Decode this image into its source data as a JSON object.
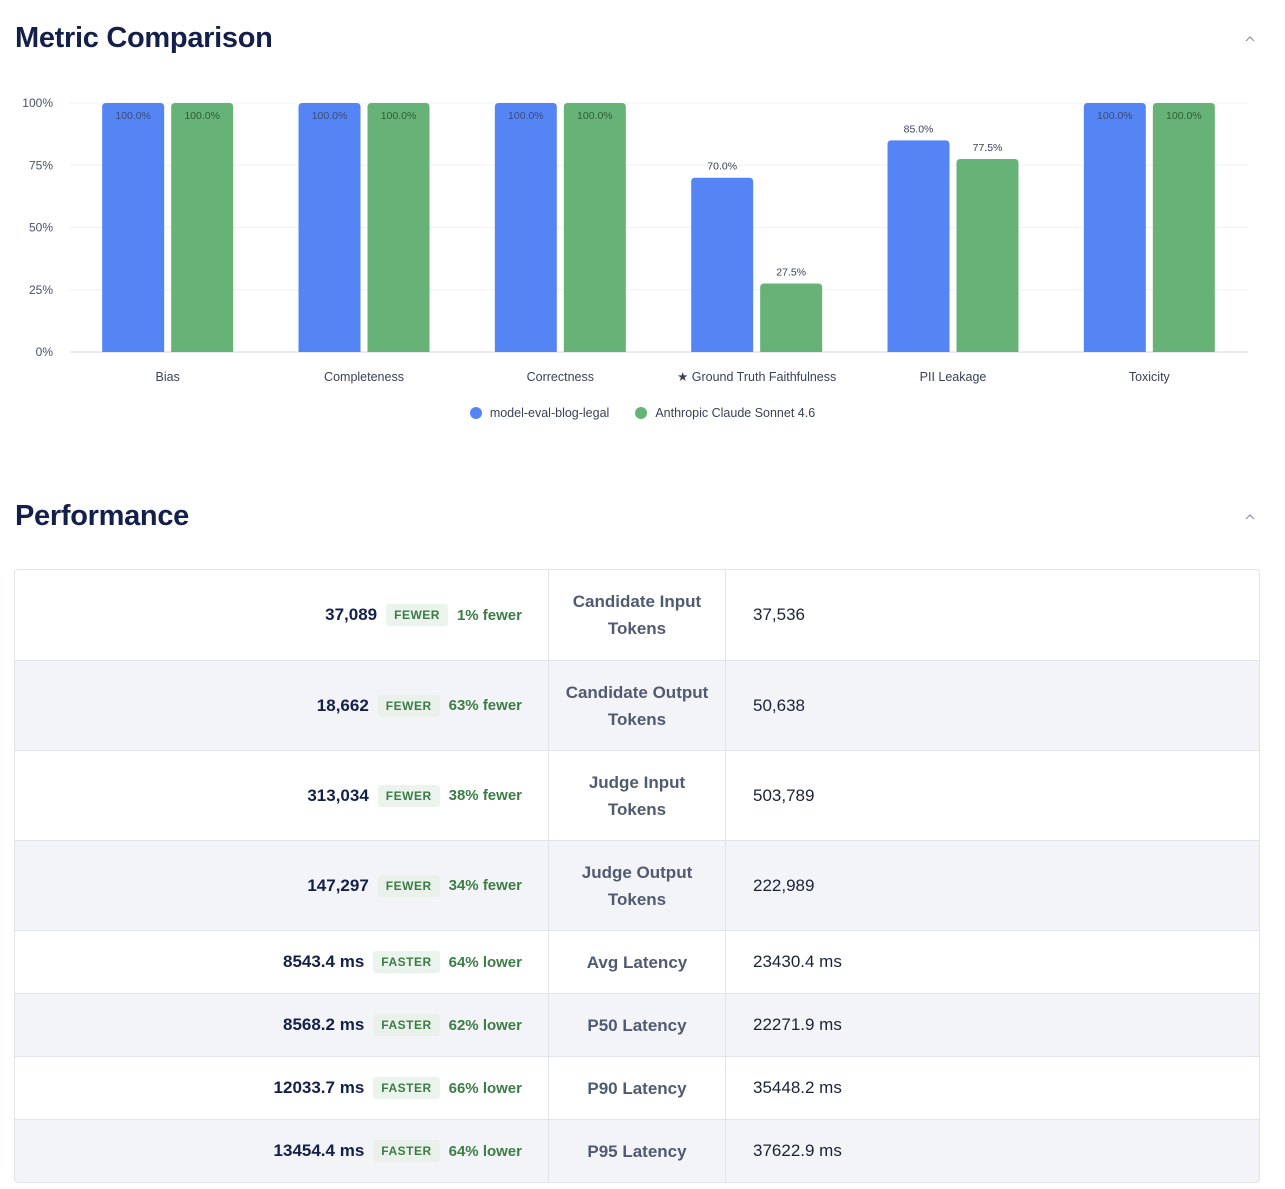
{
  "metric_section": {
    "title": "Metric Comparison"
  },
  "chart_data": {
    "type": "bar",
    "categories": [
      "Bias",
      "Completeness",
      "Correctness",
      "★ Ground Truth Faithfulness",
      "PII Leakage",
      "Toxicity"
    ],
    "series": [
      {
        "name": "model-eval-blog-legal",
        "color": "#5585f5",
        "values": [
          100.0,
          100.0,
          100.0,
          70.0,
          85.0,
          100.0
        ]
      },
      {
        "name": "Anthropic Claude Sonnet 4.6",
        "color": "#67b377",
        "values": [
          100.0,
          100.0,
          100.0,
          27.5,
          77.5,
          100.0
        ]
      }
    ],
    "ylim": [
      0,
      100
    ],
    "yticks": [
      "0%",
      "25%",
      "50%",
      "75%",
      "100%"
    ],
    "legend_position": "bottom-center",
    "grid": true
  },
  "performance_section": {
    "title": "Performance",
    "rows": [
      {
        "left_value": "37,089",
        "badge": "FEWER",
        "delta": "1% fewer",
        "metric": "Candidate Input Tokens",
        "right_value": "37,536"
      },
      {
        "left_value": "18,662",
        "badge": "FEWER",
        "delta": "63% fewer",
        "metric": "Candidate Output Tokens",
        "right_value": "50,638"
      },
      {
        "left_value": "313,034",
        "badge": "FEWER",
        "delta": "38% fewer",
        "metric": "Judge Input Tokens",
        "right_value": "503,789"
      },
      {
        "left_value": "147,297",
        "badge": "FEWER",
        "delta": "34% fewer",
        "metric": "Judge Output Tokens",
        "right_value": "222,989"
      },
      {
        "left_value": "8543.4 ms",
        "badge": "FASTER",
        "delta": "64% lower",
        "metric": "Avg Latency",
        "right_value": "23430.4 ms"
      },
      {
        "left_value": "8568.2 ms",
        "badge": "FASTER",
        "delta": "62% lower",
        "metric": "P50 Latency",
        "right_value": "22271.9 ms"
      },
      {
        "left_value": "12033.7 ms",
        "badge": "FASTER",
        "delta": "66% lower",
        "metric": "P90 Latency",
        "right_value": "35448.2 ms"
      },
      {
        "left_value": "13454.4 ms",
        "badge": "FASTER",
        "delta": "64% lower",
        "metric": "P95 Latency",
        "right_value": "37622.9 ms"
      }
    ]
  },
  "icons": {
    "collapse": "chevron-up-icon"
  }
}
